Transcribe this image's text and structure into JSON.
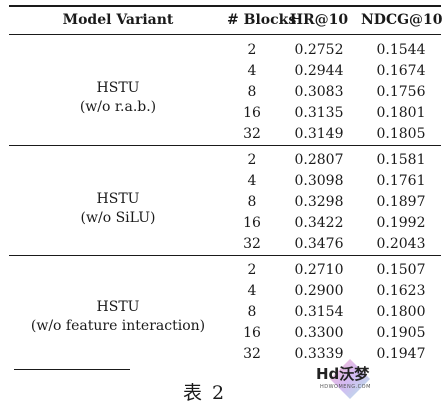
{
  "table": {
    "headers": {
      "variant": "Model Variant",
      "blocks": "# Blocks",
      "hr": "HR@10",
      "ndcg": "NDCG@10"
    },
    "groups": [
      {
        "name_line1": "HSTU",
        "name_line2": "(w/o r.a.b.)",
        "rows": [
          {
            "blocks": "2",
            "hr": "0.2752",
            "ndcg": "0.1544"
          },
          {
            "blocks": "4",
            "hr": "0.2944",
            "ndcg": "0.1674"
          },
          {
            "blocks": "8",
            "hr": "0.3083",
            "ndcg": "0.1756"
          },
          {
            "blocks": "16",
            "hr": "0.3135",
            "ndcg": "0.1801"
          },
          {
            "blocks": "32",
            "hr": "0.3149",
            "ndcg": "0.1805"
          }
        ]
      },
      {
        "name_line1": "HSTU",
        "name_line2": "(w/o SiLU)",
        "rows": [
          {
            "blocks": "2",
            "hr": "0.2807",
            "ndcg": "0.1581"
          },
          {
            "blocks": "4",
            "hr": "0.3098",
            "ndcg": "0.1761"
          },
          {
            "blocks": "8",
            "hr": "0.3298",
            "ndcg": "0.1897"
          },
          {
            "blocks": "16",
            "hr": "0.3422",
            "ndcg": "0.1992"
          },
          {
            "blocks": "32",
            "hr": "0.3476",
            "ndcg": "0.2043"
          }
        ]
      },
      {
        "name_line1": "HSTU",
        "name_line2": "(w/o feature interaction)",
        "rows": [
          {
            "blocks": "2",
            "hr": "0.2710",
            "ndcg": "0.1507"
          },
          {
            "blocks": "4",
            "hr": "0.2900",
            "ndcg": "0.1623"
          },
          {
            "blocks": "8",
            "hr": "0.3154",
            "ndcg": "0.1800"
          },
          {
            "blocks": "16",
            "hr": "0.3300",
            "ndcg": "0.1905"
          },
          {
            "blocks": "32",
            "hr": "0.3339",
            "ndcg": "0.1947"
          }
        ]
      }
    ]
  },
  "caption": "表 2",
  "watermark": {
    "text": "Hd沃梦",
    "subtext": "HDWOMENG.COM"
  }
}
